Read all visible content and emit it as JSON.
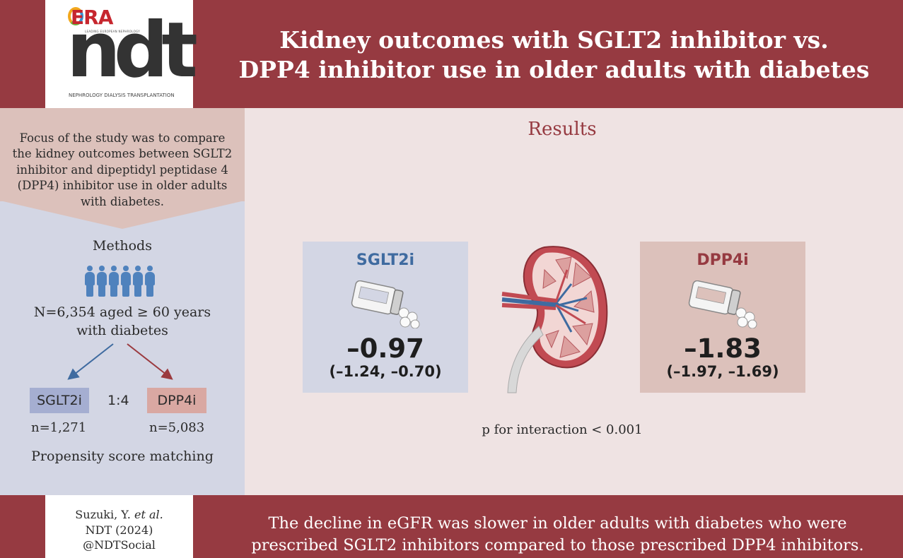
{
  "header": {
    "logo": {
      "brand": "ERA",
      "brand_sub": "LEADING EUROPEAN NEPHROLOGY",
      "name": "ndt",
      "sub": "NEPHROLOGY DIALYSIS TRANSPLANTATION"
    },
    "title_lines": [
      "Kidney outcomes with SGLT2 inhibitor vs.",
      "DPP4 inhibitor use in older adults with diabetes"
    ]
  },
  "focus_text": "Focus of the study was to compare the kidney outcomes between SGLT2 inhibitor and dipeptidyl peptidase 4 (DPP4) inhibitor use in older adults with diabetes.",
  "methods": {
    "title": "Methods",
    "population_line1": "N=6,354 aged ≥ 60 years",
    "population_line2": "with diabetes",
    "group_a": "SGLT2i",
    "group_b": "DPP4i",
    "ratio": "1:4",
    "n_a": "n=1,271",
    "n_b": "n=5,083",
    "matching": "Propensity score matching"
  },
  "results": {
    "title": "Results",
    "sglt2i": {
      "name": "SGLT2i",
      "value": "–0.97",
      "ci": "(–1.24, –0.70)"
    },
    "dpp4i": {
      "name": "DPP4i",
      "value": "–1.83",
      "ci": "(–1.97, –1.69)"
    },
    "p_interaction": "p for interaction < 0.001"
  },
  "footer": {
    "citation_author": "Suzuki, Y.",
    "citation_etal": "et al.",
    "citation_journal": "NDT (2024)",
    "citation_handle": "@NDTSocial",
    "conclusion_lines": [
      "The decline in eGFR was slower in older adults with diabetes who were",
      "prescribed SGLT2 inhibitors compared to those prescribed DPP4 inhibitors."
    ]
  },
  "colors": {
    "brand_red": "#963a41",
    "sglt_blue": "#3f6ba0",
    "people_blue": "#4f82bd",
    "arrow_red": "#9b3a3f"
  }
}
